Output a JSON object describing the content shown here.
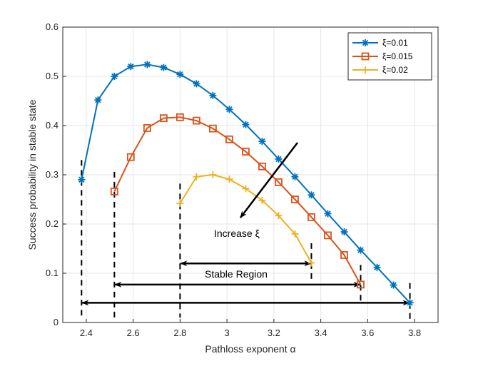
{
  "chart_data": {
    "type": "line",
    "xlabel": "Pathloss exponent α",
    "ylabel": "Success probability in stable state",
    "xlim": [
      2.3,
      3.9
    ],
    "ylim": [
      0,
      0.6
    ],
    "xticks": [
      "2.4",
      "2.6",
      "2.8",
      "3",
      "3.2",
      "3.4",
      "3.6",
      "3.8"
    ],
    "xtick_values": [
      2.4,
      2.6,
      2.8,
      3.0,
      3.2,
      3.4,
      3.6,
      3.8
    ],
    "yticks": [
      "0",
      "0.1",
      "0.2",
      "0.3",
      "0.4",
      "0.5",
      "0.6"
    ],
    "ytick_values": [
      0,
      0.1,
      0.2,
      0.3,
      0.4,
      0.5,
      0.6
    ],
    "grid": true,
    "legend_position": "top-right",
    "series": [
      {
        "name": "ξ=0.01",
        "color": "#0072BD",
        "marker": "asterisk",
        "x": [
          2.38,
          2.45,
          2.52,
          2.59,
          2.66,
          2.73,
          2.8,
          2.87,
          2.94,
          3.01,
          3.08,
          3.15,
          3.22,
          3.29,
          3.36,
          3.43,
          3.5,
          3.57,
          3.64,
          3.71,
          3.78
        ],
        "y": [
          0.29,
          0.452,
          0.5,
          0.52,
          0.524,
          0.518,
          0.504,
          0.485,
          0.461,
          0.433,
          0.402,
          0.368,
          0.332,
          0.296,
          0.259,
          0.221,
          0.184,
          0.147,
          0.112,
          0.076,
          0.04
        ]
      },
      {
        "name": "ξ=0.015",
        "color": "#D95319",
        "marker": "square",
        "x": [
          2.52,
          2.59,
          2.66,
          2.73,
          2.8,
          2.87,
          2.94,
          3.01,
          3.08,
          3.15,
          3.22,
          3.29,
          3.36,
          3.43,
          3.5,
          3.57
        ],
        "y": [
          0.266,
          0.336,
          0.395,
          0.415,
          0.417,
          0.41,
          0.394,
          0.372,
          0.347,
          0.317,
          0.285,
          0.25,
          0.214,
          0.177,
          0.137,
          0.077
        ]
      },
      {
        "name": "ξ=0.02",
        "color": "#EDB120",
        "marker": "plus",
        "x": [
          2.8,
          2.87,
          2.94,
          3.01,
          3.08,
          3.15,
          3.22,
          3.29,
          3.36
        ],
        "y": [
          0.242,
          0.296,
          0.3,
          0.291,
          0.272,
          0.248,
          0.217,
          0.18,
          0.121
        ]
      }
    ],
    "annotations": {
      "increase_label": "Increase ξ",
      "stable_label": "Stable Region"
    }
  }
}
